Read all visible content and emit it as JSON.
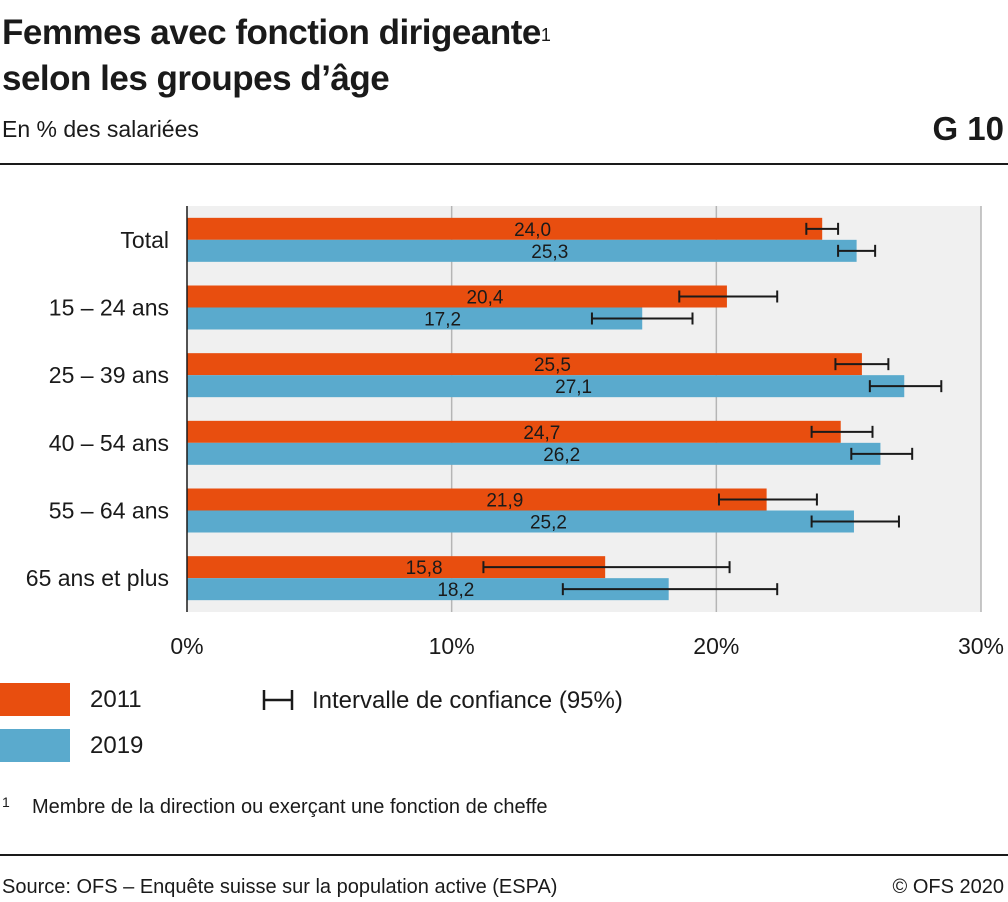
{
  "header": {
    "title_line1": "Femmes avec fonction dirigeante",
    "title_sup": "1",
    "title_line2": "selon les groupes d’âge",
    "subtitle": "En % des salariées",
    "chart_id": "G 10"
  },
  "colors": {
    "series_2011": "#e84e0f",
    "series_2019": "#5aaacd",
    "plot_bg": "#f0f0f0",
    "grid": "#b5b5b5"
  },
  "legend": {
    "ci_label": "Intervalle de confiance (95%)"
  },
  "footnote": {
    "mark": "1",
    "text": "Membre de la direction ou exerçant une fonction de cheffe"
  },
  "footer": {
    "source": "Source: OFS – Enquête suisse sur la population active (ESPA)",
    "copyright": "© OFS 2020"
  },
  "chart_data": {
    "type": "bar",
    "orientation": "horizontal",
    "title": "Femmes avec fonction dirigeante",
    "ylabel": "",
    "xlabel": "",
    "xlim": [
      0,
      30
    ],
    "xticks": [
      0,
      10,
      20,
      30
    ],
    "xtick_labels": [
      "0%",
      "10%",
      "20%",
      "30%"
    ],
    "grid": true,
    "legend_position": "bottom-left",
    "categories": [
      "Total",
      "15 – 24 ans",
      "25 – 39 ans",
      "40 – 54 ans",
      "55 – 64 ans",
      "65 ans et plus"
    ],
    "series": [
      {
        "name": "2011",
        "color": "#e84e0f",
        "values": [
          24.0,
          20.4,
          25.5,
          24.7,
          21.9,
          15.8
        ],
        "labels": [
          "24,0",
          "20,4",
          "25,5",
          "24,7",
          "21,9",
          "15,8"
        ],
        "ci_low": [
          23.4,
          18.6,
          24.5,
          23.6,
          20.1,
          11.2
        ],
        "ci_high": [
          24.6,
          22.3,
          26.5,
          25.9,
          23.8,
          20.5
        ]
      },
      {
        "name": "2019",
        "color": "#5aaacd",
        "values": [
          25.3,
          17.2,
          27.1,
          26.2,
          25.2,
          18.2
        ],
        "labels": [
          "25,3",
          "17,2",
          "27,1",
          "26,2",
          "25,2",
          "18,2"
        ],
        "ci_low": [
          24.6,
          15.3,
          25.8,
          25.1,
          23.6,
          14.2
        ],
        "ci_high": [
          26.0,
          19.1,
          28.5,
          27.4,
          26.9,
          22.3
        ]
      }
    ]
  }
}
